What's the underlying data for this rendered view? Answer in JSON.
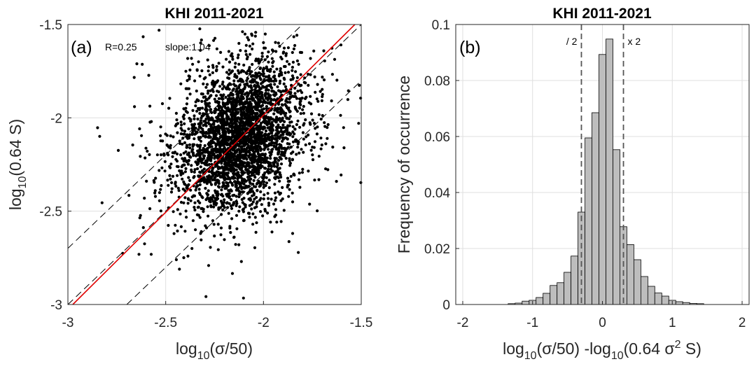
{
  "chart_data": [
    {
      "type": "scatter",
      "panel_label": "(a)",
      "title": "KHI 2011-2021",
      "xlabel_main": "log",
      "xlabel_sub": "10",
      "xlabel_rest": "(σ/50)",
      "ylabel_main": "log",
      "ylabel_sub": "10",
      "ylabel_rest": "(0.64 S)",
      "xlim": [
        -3,
        -1.5
      ],
      "ylim": [
        -3,
        -1.5
      ],
      "xticks": [
        -3,
        -2.5,
        -2,
        -1.5
      ],
      "yticks": [
        -3,
        -2.5,
        -2,
        -1.5
      ],
      "xtick_labels": [
        "-3",
        "-2.5",
        "-2",
        "-1.5"
      ],
      "ytick_labels": [
        "-3",
        "-2.5",
        "-2",
        "-1.5"
      ],
      "grid": true,
      "stats": {
        "r_label": "R=0.25",
        "slope_label": "slope:1.04"
      },
      "fit_line": {
        "slope": 1.04,
        "intercept": 0.094,
        "color": "#e00000"
      },
      "factor_lines": {
        "offsets": [
          -0.30103,
          0,
          0.30103
        ],
        "color": "#000000"
      },
      "point_color": "#000000",
      "point_cloud": {
        "n_points": 3200,
        "center": [
          -2.12,
          -2.1
        ],
        "sd_x": 0.16,
        "sd_y": 0.2,
        "correlation": 0.25
      }
    },
    {
      "type": "histogram",
      "panel_label": "(b)",
      "title": "KHI 2011-2021",
      "xlabel_part1": "log",
      "xlabel_sub1": "10",
      "xlabel_part2": "(σ/50) -log",
      "xlabel_sub2": "10",
      "xlabel_part3": "(0.64 σ",
      "xlabel_sup": "2",
      "xlabel_part4": " S)",
      "ylabel": "Frequency of occurrence",
      "xlim": [
        -2.1,
        2.1
      ],
      "ylim": [
        0,
        0.1
      ],
      "xticks": [
        -2,
        -1,
        0,
        1,
        2
      ],
      "yticks": [
        0,
        0.02,
        0.04,
        0.06,
        0.08,
        0.1
      ],
      "xtick_labels": [
        "-2",
        "-1",
        "0",
        "1",
        "2"
      ],
      "ytick_labels": [
        "0",
        "0.02",
        "0.04",
        "0.06",
        "0.08",
        "0.1"
      ],
      "grid": true,
      "bar_color": "#bdbdbd",
      "bin_width": 0.1,
      "bins": [
        {
          "x": -1.3,
          "y": 0.0003
        },
        {
          "x": -1.2,
          "y": 0.0005
        },
        {
          "x": -1.1,
          "y": 0.0012
        },
        {
          "x": -1.0,
          "y": 0.0015
        },
        {
          "x": -0.9,
          "y": 0.0025
        },
        {
          "x": -0.8,
          "y": 0.004
        },
        {
          "x": -0.7,
          "y": 0.0068
        },
        {
          "x": -0.6,
          "y": 0.0078
        },
        {
          "x": -0.5,
          "y": 0.0115
        },
        {
          "x": -0.4,
          "y": 0.0173
        },
        {
          "x": -0.3,
          "y": 0.033
        },
        {
          "x": -0.2,
          "y": 0.0595
        },
        {
          "x": -0.1,
          "y": 0.0685
        },
        {
          "x": 0.0,
          "y": 0.0893
        },
        {
          "x": 0.1,
          "y": 0.0948
        },
        {
          "x": 0.2,
          "y": 0.0553
        },
        {
          "x": 0.3,
          "y": 0.0278
        },
        {
          "x": 0.4,
          "y": 0.0214
        },
        {
          "x": 0.5,
          "y": 0.016
        },
        {
          "x": 0.6,
          "y": 0.01
        },
        {
          "x": 0.7,
          "y": 0.0065
        },
        {
          "x": 0.8,
          "y": 0.0041
        },
        {
          "x": 0.9,
          "y": 0.003
        },
        {
          "x": 1.0,
          "y": 0.0015
        },
        {
          "x": 1.1,
          "y": 0.001
        },
        {
          "x": 1.2,
          "y": 0.0007
        },
        {
          "x": 1.3,
          "y": 0.0004
        },
        {
          "x": 1.4,
          "y": 0.0003
        }
      ],
      "vlines": [
        {
          "x": -0.30103,
          "label": "/ 2"
        },
        {
          "x": 0.30103,
          "label": "x 2"
        }
      ]
    }
  ]
}
